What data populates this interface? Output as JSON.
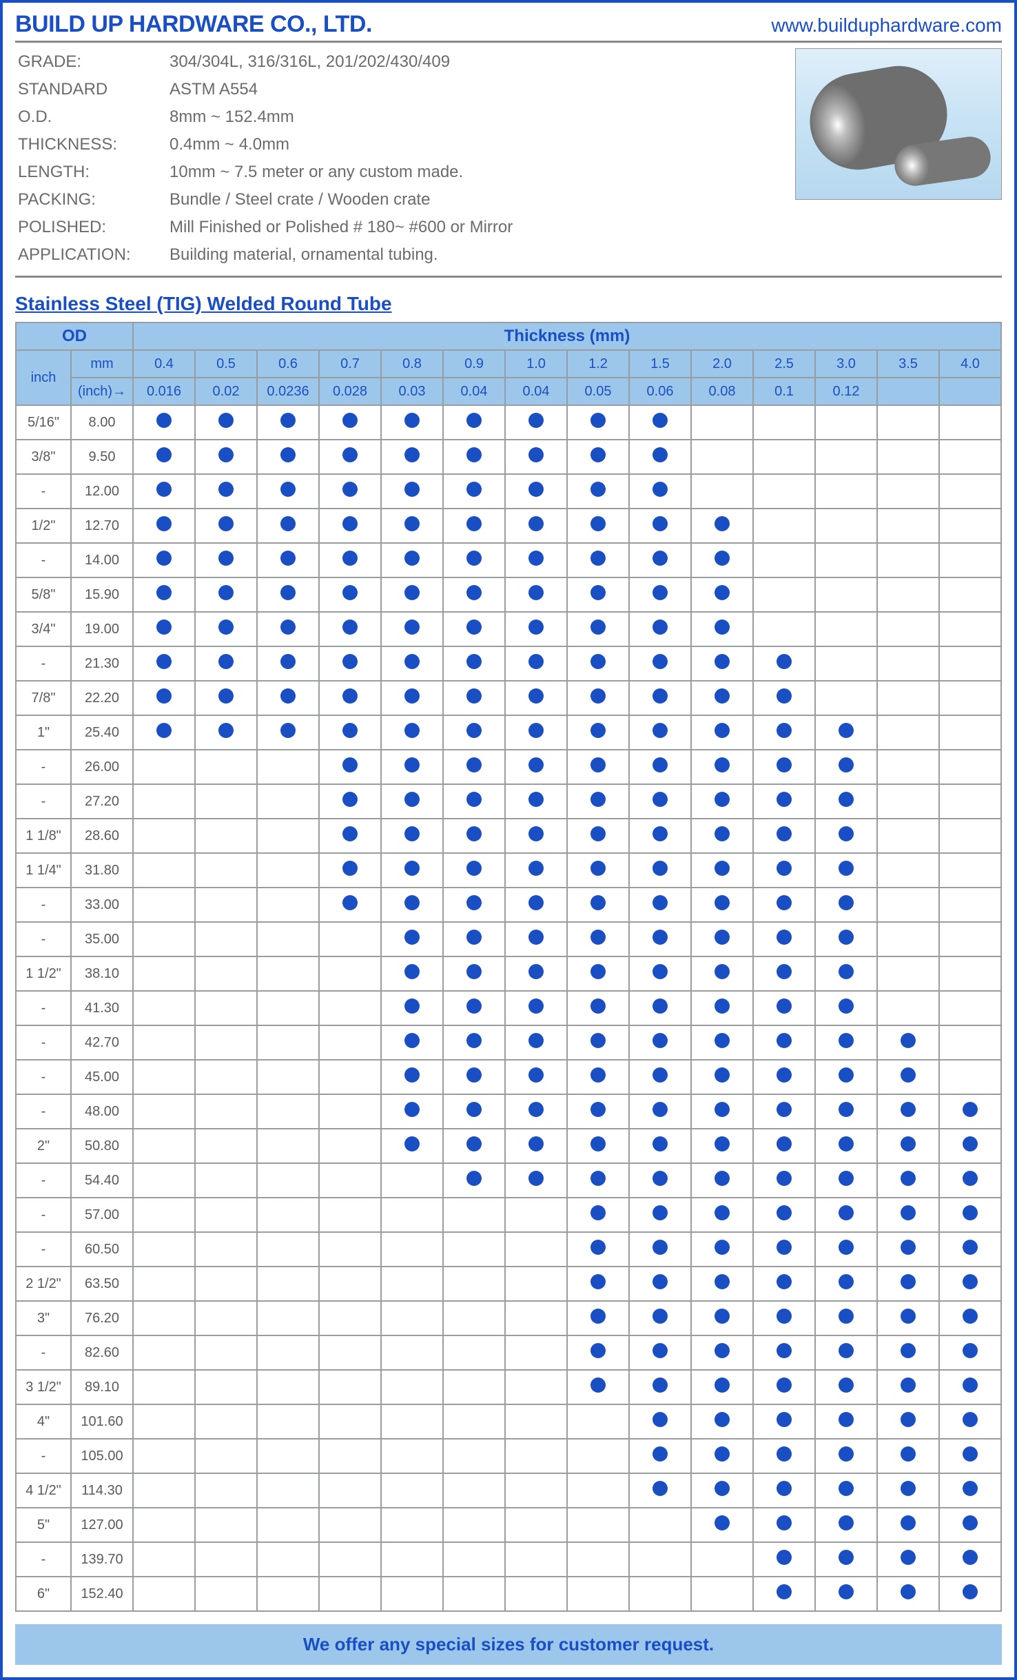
{
  "header": {
    "company": "BUILD UP HARDWARE CO., LTD.",
    "website": "www.builduphardware.com"
  },
  "specs": [
    {
      "label": "GRADE:",
      "value": "304/304L, 316/316L, 201/202/430/409"
    },
    {
      "label": "STANDARD",
      "value": "ASTM A554"
    },
    {
      "label": "O.D.",
      "value": "8mm ~ 152.4mm"
    },
    {
      "label": "THICKNESS:",
      "value": "0.4mm ~ 4.0mm"
    },
    {
      "label": "LENGTH:",
      "value": "10mm ~ 7.5 meter or any custom made."
    },
    {
      "label": "PACKING:",
      "value": "Bundle / Steel crate / Wooden crate"
    },
    {
      "label": "POLISHED:",
      "value": "Mill Finished or Polished # 180~ #600 or Mirror"
    },
    {
      "label": "APPLICATION:",
      "value": "Building material, ornamental tubing."
    }
  ],
  "section_title": "Stainless Steel (TIG) Welded Round Tube",
  "table": {
    "od_label": "OD",
    "thickness_label": "Thickness (mm)",
    "inch_label": "inch",
    "mm_label": "mm",
    "inch_row_label": "(inch)→",
    "thickness_mm": [
      "0.4",
      "0.5",
      "0.6",
      "0.7",
      "0.8",
      "0.9",
      "1.0",
      "1.2",
      "1.5",
      "2.0",
      "2.5",
      "3.0",
      "3.5",
      "4.0"
    ],
    "thickness_inch": [
      "0.016",
      "0.02",
      "0.0236",
      "0.028",
      "0.03",
      "0.04",
      "0.04",
      "0.05",
      "0.06",
      "0.08",
      "0.1",
      "0.12",
      "",
      ""
    ],
    "rows": [
      {
        "inch": "5/16\"",
        "mm": "8.00",
        "dots": [
          1,
          1,
          1,
          1,
          1,
          1,
          1,
          1,
          1,
          0,
          0,
          0,
          0,
          0
        ]
      },
      {
        "inch": "3/8\"",
        "mm": "9.50",
        "dots": [
          1,
          1,
          1,
          1,
          1,
          1,
          1,
          1,
          1,
          0,
          0,
          0,
          0,
          0
        ]
      },
      {
        "inch": "-",
        "mm": "12.00",
        "dots": [
          1,
          1,
          1,
          1,
          1,
          1,
          1,
          1,
          1,
          0,
          0,
          0,
          0,
          0
        ]
      },
      {
        "inch": "1/2\"",
        "mm": "12.70",
        "dots": [
          1,
          1,
          1,
          1,
          1,
          1,
          1,
          1,
          1,
          1,
          0,
          0,
          0,
          0
        ]
      },
      {
        "inch": "-",
        "mm": "14.00",
        "dots": [
          1,
          1,
          1,
          1,
          1,
          1,
          1,
          1,
          1,
          1,
          0,
          0,
          0,
          0
        ]
      },
      {
        "inch": "5/8\"",
        "mm": "15.90",
        "dots": [
          1,
          1,
          1,
          1,
          1,
          1,
          1,
          1,
          1,
          1,
          0,
          0,
          0,
          0
        ]
      },
      {
        "inch": "3/4\"",
        "mm": "19.00",
        "dots": [
          1,
          1,
          1,
          1,
          1,
          1,
          1,
          1,
          1,
          1,
          0,
          0,
          0,
          0
        ]
      },
      {
        "inch": "-",
        "mm": "21.30",
        "dots": [
          1,
          1,
          1,
          1,
          1,
          1,
          1,
          1,
          1,
          1,
          1,
          0,
          0,
          0
        ]
      },
      {
        "inch": "7/8\"",
        "mm": "22.20",
        "dots": [
          1,
          1,
          1,
          1,
          1,
          1,
          1,
          1,
          1,
          1,
          1,
          0,
          0,
          0
        ]
      },
      {
        "inch": "1\"",
        "mm": "25.40",
        "dots": [
          1,
          1,
          1,
          1,
          1,
          1,
          1,
          1,
          1,
          1,
          1,
          1,
          0,
          0
        ]
      },
      {
        "inch": "-",
        "mm": "26.00",
        "dots": [
          0,
          0,
          0,
          1,
          1,
          1,
          1,
          1,
          1,
          1,
          1,
          1,
          0,
          0
        ]
      },
      {
        "inch": "-",
        "mm": "27.20",
        "dots": [
          0,
          0,
          0,
          1,
          1,
          1,
          1,
          1,
          1,
          1,
          1,
          1,
          0,
          0
        ]
      },
      {
        "inch": "1 1/8\"",
        "mm": "28.60",
        "dots": [
          0,
          0,
          0,
          1,
          1,
          1,
          1,
          1,
          1,
          1,
          1,
          1,
          0,
          0
        ]
      },
      {
        "inch": "1 1/4\"",
        "mm": "31.80",
        "dots": [
          0,
          0,
          0,
          1,
          1,
          1,
          1,
          1,
          1,
          1,
          1,
          1,
          0,
          0
        ]
      },
      {
        "inch": "-",
        "mm": "33.00",
        "dots": [
          0,
          0,
          0,
          1,
          1,
          1,
          1,
          1,
          1,
          1,
          1,
          1,
          0,
          0
        ]
      },
      {
        "inch": "-",
        "mm": "35.00",
        "dots": [
          0,
          0,
          0,
          0,
          1,
          1,
          1,
          1,
          1,
          1,
          1,
          1,
          0,
          0
        ]
      },
      {
        "inch": "1 1/2\"",
        "mm": "38.10",
        "dots": [
          0,
          0,
          0,
          0,
          1,
          1,
          1,
          1,
          1,
          1,
          1,
          1,
          0,
          0
        ]
      },
      {
        "inch": "-",
        "mm": "41.30",
        "dots": [
          0,
          0,
          0,
          0,
          1,
          1,
          1,
          1,
          1,
          1,
          1,
          1,
          0,
          0
        ]
      },
      {
        "inch": "-",
        "mm": "42.70",
        "dots": [
          0,
          0,
          0,
          0,
          1,
          1,
          1,
          1,
          1,
          1,
          1,
          1,
          1,
          0
        ]
      },
      {
        "inch": "-",
        "mm": "45.00",
        "dots": [
          0,
          0,
          0,
          0,
          1,
          1,
          1,
          1,
          1,
          1,
          1,
          1,
          1,
          0
        ]
      },
      {
        "inch": "-",
        "mm": "48.00",
        "dots": [
          0,
          0,
          0,
          0,
          1,
          1,
          1,
          1,
          1,
          1,
          1,
          1,
          1,
          1
        ]
      },
      {
        "inch": "2\"",
        "mm": "50.80",
        "dots": [
          0,
          0,
          0,
          0,
          1,
          1,
          1,
          1,
          1,
          1,
          1,
          1,
          1,
          1
        ]
      },
      {
        "inch": "-",
        "mm": "54.40",
        "dots": [
          0,
          0,
          0,
          0,
          0,
          1,
          1,
          1,
          1,
          1,
          1,
          1,
          1,
          1
        ]
      },
      {
        "inch": "-",
        "mm": "57.00",
        "dots": [
          0,
          0,
          0,
          0,
          0,
          0,
          0,
          1,
          1,
          1,
          1,
          1,
          1,
          1
        ]
      },
      {
        "inch": "-",
        "mm": "60.50",
        "dots": [
          0,
          0,
          0,
          0,
          0,
          0,
          0,
          1,
          1,
          1,
          1,
          1,
          1,
          1
        ]
      },
      {
        "inch": "2 1/2\"",
        "mm": "63.50",
        "dots": [
          0,
          0,
          0,
          0,
          0,
          0,
          0,
          1,
          1,
          1,
          1,
          1,
          1,
          1
        ]
      },
      {
        "inch": "3\"",
        "mm": "76.20",
        "dots": [
          0,
          0,
          0,
          0,
          0,
          0,
          0,
          1,
          1,
          1,
          1,
          1,
          1,
          1
        ]
      },
      {
        "inch": "-",
        "mm": "82.60",
        "dots": [
          0,
          0,
          0,
          0,
          0,
          0,
          0,
          1,
          1,
          1,
          1,
          1,
          1,
          1
        ]
      },
      {
        "inch": "3 1/2\"",
        "mm": "89.10",
        "dots": [
          0,
          0,
          0,
          0,
          0,
          0,
          0,
          1,
          1,
          1,
          1,
          1,
          1,
          1
        ]
      },
      {
        "inch": "4\"",
        "mm": "101.60",
        "dots": [
          0,
          0,
          0,
          0,
          0,
          0,
          0,
          0,
          1,
          1,
          1,
          1,
          1,
          1
        ]
      },
      {
        "inch": "-",
        "mm": "105.00",
        "dots": [
          0,
          0,
          0,
          0,
          0,
          0,
          0,
          0,
          1,
          1,
          1,
          1,
          1,
          1
        ]
      },
      {
        "inch": "4 1/2\"",
        "mm": "114.30",
        "dots": [
          0,
          0,
          0,
          0,
          0,
          0,
          0,
          0,
          1,
          1,
          1,
          1,
          1,
          1
        ]
      },
      {
        "inch": "5\"",
        "mm": "127.00",
        "dots": [
          0,
          0,
          0,
          0,
          0,
          0,
          0,
          0,
          0,
          1,
          1,
          1,
          1,
          1
        ]
      },
      {
        "inch": "-",
        "mm": "139.70",
        "dots": [
          0,
          0,
          0,
          0,
          0,
          0,
          0,
          0,
          0,
          0,
          1,
          1,
          1,
          1
        ]
      },
      {
        "inch": "6\"",
        "mm": "152.40",
        "dots": [
          0,
          0,
          0,
          0,
          0,
          0,
          0,
          0,
          0,
          0,
          1,
          1,
          1,
          1
        ]
      }
    ]
  },
  "footer": "We offer any special sizes for customer request.",
  "colors": {
    "brand_blue": "#1a4fc4",
    "header_bg": "#9cc7eb",
    "border_grey": "#9a9da0",
    "text_grey": "#6b6b6b"
  }
}
